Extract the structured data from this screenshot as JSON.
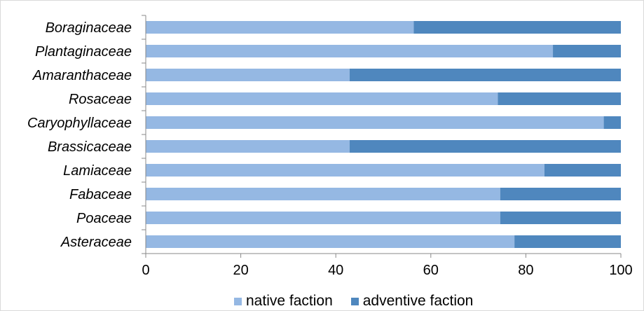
{
  "chart_data": {
    "type": "bar",
    "orientation": "horizontal",
    "stacked": true,
    "categories": [
      "Boraginaceae",
      "Plantaginaceae",
      "Amaranthaceae",
      "Rosaceae",
      "Caryophyllaceae",
      "Brassicaceae",
      "Lamiaceae",
      "Fabaceae",
      "Poaceae",
      "Asteraceae"
    ],
    "series": [
      {
        "name": "native faction",
        "values": [
          56.4,
          85.7,
          42.9,
          74.1,
          96.4,
          42.9,
          83.9,
          74.6,
          74.6,
          77.6
        ],
        "color": "#95b8e3"
      },
      {
        "name": "adventive faction",
        "values": [
          43.6,
          14.3,
          57.1,
          25.9,
          3.6,
          57.1,
          16.1,
          25.4,
          25.4,
          22.4
        ],
        "color": "#4f87be"
      }
    ],
    "xlim": [
      0,
      100
    ],
    "xticks": [
      0,
      20,
      40,
      60,
      80,
      100
    ],
    "grid": false,
    "legend_position": "bottom",
    "title": "",
    "xlabel": "",
    "ylabel": ""
  }
}
